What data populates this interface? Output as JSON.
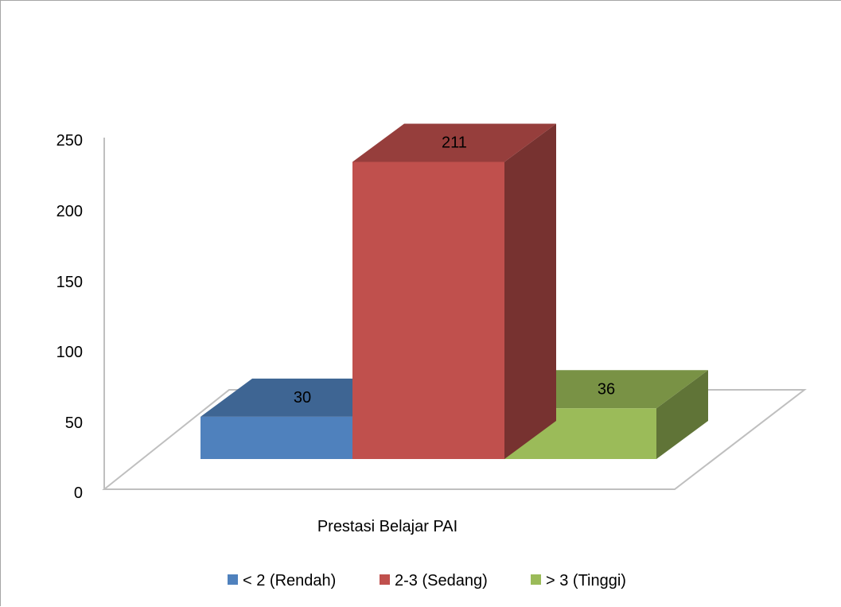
{
  "chart_data": {
    "type": "bar",
    "style": "3d-clustered-column",
    "categories": [
      "Prestasi Belajar PAI"
    ],
    "series": [
      {
        "name": "< 2 (Rendah)",
        "values": [
          30
        ],
        "color": "#4f81bd"
      },
      {
        "name": "2-3 (Sedang)",
        "values": [
          211
        ],
        "color": "#c0504d"
      },
      {
        "name": "> 3 (Tinggi)",
        "values": [
          36
        ],
        "color": "#9bbb59"
      }
    ],
    "y_ticks": [
      "0",
      "50",
      "100",
      "150",
      "200",
      "250"
    ],
    "ylim": [
      0,
      250
    ],
    "data_labels": [
      "30",
      "211",
      "36"
    ],
    "legend_position": "bottom",
    "grid": false
  }
}
